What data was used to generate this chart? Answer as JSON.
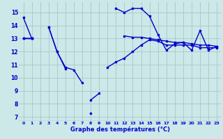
{
  "background_color": "#cde8e8",
  "grid_color": "#aacccc",
  "line_color": "#0000cc",
  "x_hours": [
    0,
    1,
    2,
    3,
    4,
    5,
    6,
    7,
    8,
    9,
    10,
    11,
    12,
    13,
    14,
    15,
    16,
    17,
    18,
    19,
    20,
    21,
    22,
    23
  ],
  "series1": [
    14.6,
    13.0,
    null,
    13.9,
    12.0,
    10.7,
    null,
    null,
    8.3,
    8.8,
    null,
    15.3,
    15.0,
    15.3,
    15.3,
    14.7,
    13.3,
    12.1,
    12.6,
    12.7,
    12.1,
    13.6,
    12.1,
    12.4
  ],
  "series2": [
    13.0,
    13.0,
    null,
    13.9,
    12.0,
    10.8,
    10.6,
    9.6,
    null,
    null,
    null,
    null,
    null,
    null,
    null,
    null,
    null,
    null,
    null,
    null,
    null,
    null,
    null,
    null
  ],
  "series3": [
    13.0,
    13.0,
    null,
    null,
    null,
    null,
    null,
    null,
    null,
    null,
    10.8,
    11.2,
    11.5,
    12.0,
    12.5,
    12.9,
    12.8,
    12.5,
    12.5,
    12.5,
    12.5,
    12.3,
    12.3,
    12.3
  ],
  "series4": [
    13.0,
    13.0,
    null,
    null,
    null,
    null,
    null,
    null,
    7.3,
    null,
    null,
    null,
    13.2,
    13.1,
    13.1,
    13.0,
    12.9,
    12.8,
    12.7,
    12.7,
    12.6,
    12.5,
    12.5,
    12.4
  ],
  "ylim": [
    6.7,
    15.8
  ],
  "yticks": [
    7,
    8,
    9,
    10,
    11,
    12,
    13,
    14,
    15
  ],
  "xlabel": "Graphe des températures (°C)",
  "figsize": [
    3.2,
    2.0
  ],
  "dpi": 100
}
